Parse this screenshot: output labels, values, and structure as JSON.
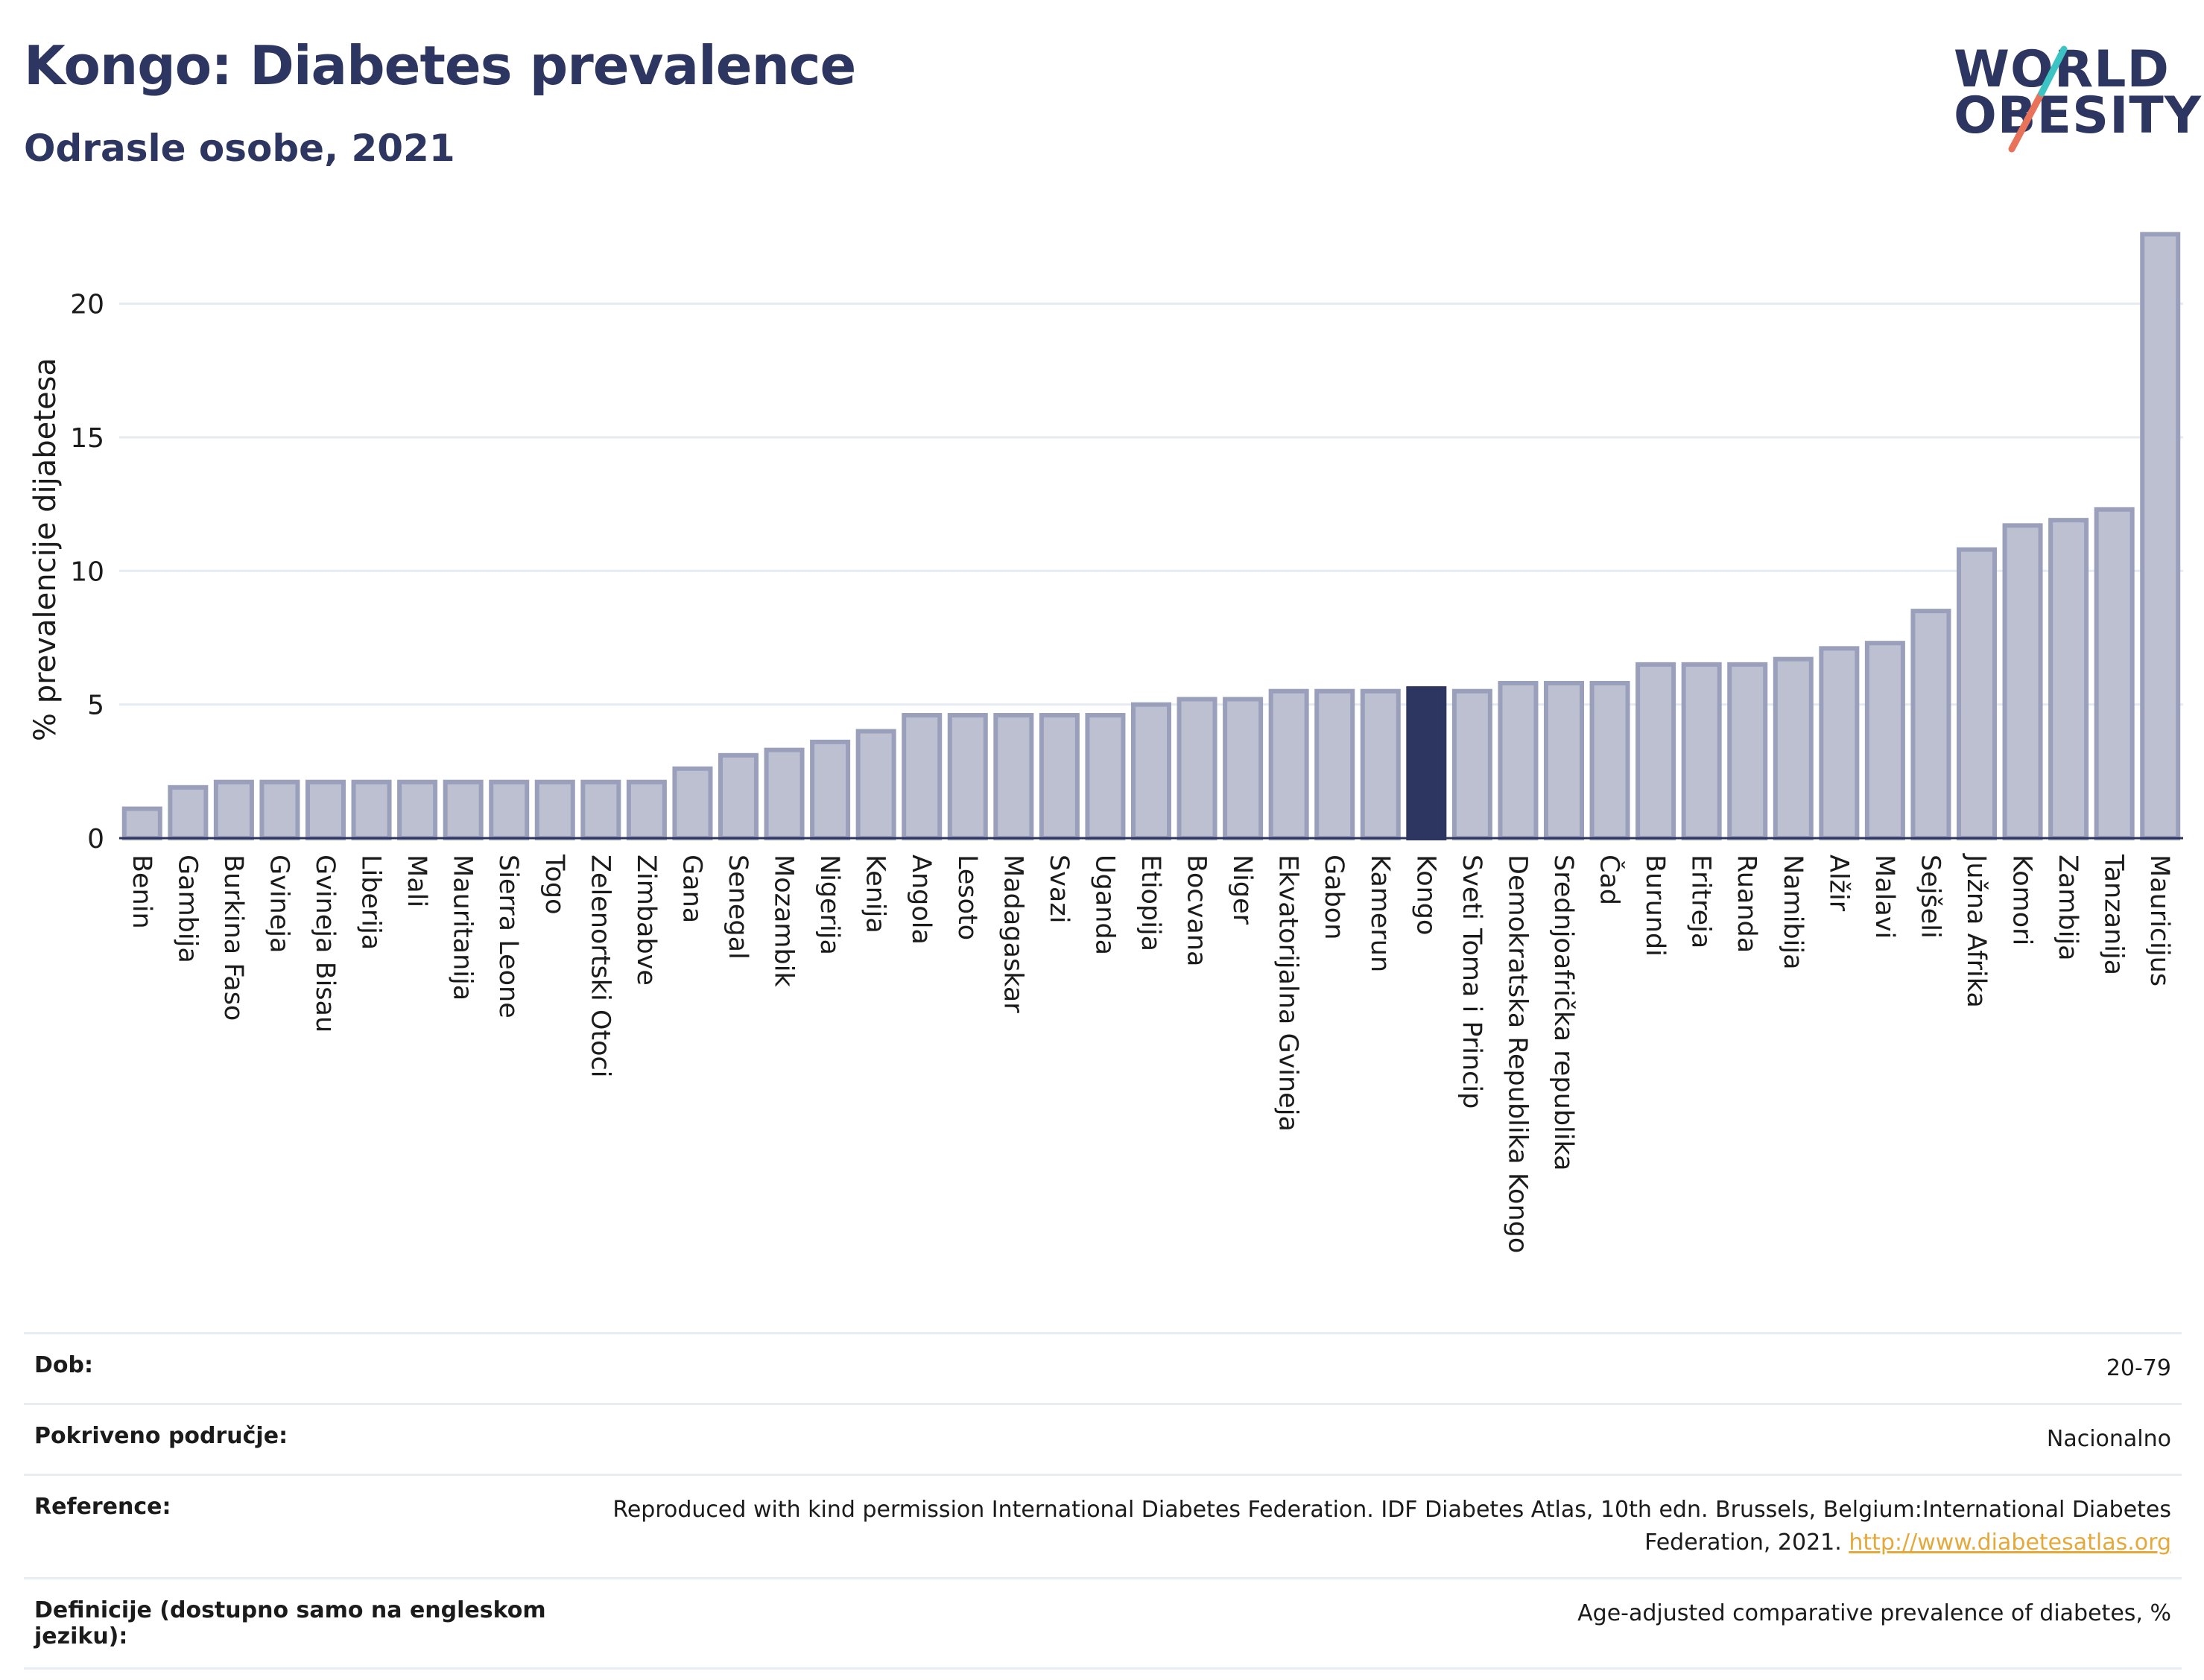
{
  "header": {
    "title": "Kongo: Diabetes prevalence",
    "subtitle": "Odrasle osobe, 2021"
  },
  "logo": {
    "line1": "WORLD",
    "line2": "OBESITY",
    "colors": {
      "text": "#2d3561",
      "slash_teal": "#3cc3c3",
      "slash_coral": "#e8735a"
    }
  },
  "colors": {
    "bar_default": "#bcc0d0",
    "bar_border": "#9aa0bb",
    "bar_highlight": "#2d3561",
    "gridline": "#e6ebf2",
    "axis_text": "#1b1b1b"
  },
  "chart_data": {
    "type": "bar",
    "title": "Kongo: Diabetes prevalence",
    "subtitle": "Odrasle osobe, 2021",
    "xlabel": "",
    "ylabel": "% prevalencije dijabetesa",
    "ylim": [
      0,
      23
    ],
    "yticks": [
      0,
      5,
      10,
      15,
      20
    ],
    "grid": true,
    "highlight": "Kongo",
    "categories": [
      "Benin",
      "Gambija",
      "Burkina Faso",
      "Gvineja",
      "Gvineja Bisau",
      "Liberija",
      "Mali",
      "Mauritanija",
      "Sierra Leone",
      "Togo",
      "Zelenortski Otoci",
      "Zimbabve",
      "Gana",
      "Senegal",
      "Mozambik",
      "Nigerija",
      "Kenija",
      "Angola",
      "Lesoto",
      "Madagaskar",
      "Svazi",
      "Uganda",
      "Etiopija",
      "Bocvana",
      "Niger",
      "Ekvatorijalna Gvineja",
      "Gabon",
      "Kamerun",
      "Kongo",
      "Sveti Toma i Princip",
      "Demokratska Republika Kongo",
      "Srednjoafrička republika",
      "Čad",
      "Burundi",
      "Eritreja",
      "Ruanda",
      "Namibija",
      "Alžir",
      "Malavi",
      "Sejšeli",
      "Južna Afrika",
      "Komori",
      "Zambija",
      "Tanzanija",
      "Mauricijus"
    ],
    "values": [
      1.1,
      1.9,
      2.1,
      2.1,
      2.1,
      2.1,
      2.1,
      2.1,
      2.1,
      2.1,
      2.1,
      2.1,
      2.6,
      3.1,
      3.3,
      3.6,
      4.0,
      4.6,
      4.6,
      4.6,
      4.6,
      4.6,
      5.0,
      5.2,
      5.2,
      5.5,
      5.5,
      5.5,
      5.6,
      5.5,
      5.8,
      5.8,
      5.8,
      6.5,
      6.5,
      6.5,
      6.7,
      7.1,
      7.3,
      8.5,
      10.8,
      11.7,
      11.9,
      12.3,
      22.6
    ]
  },
  "info": {
    "rows": [
      {
        "label": "Dob:",
        "value": "20-79"
      },
      {
        "label": "Pokriveno područje:",
        "value": "Nacionalno"
      },
      {
        "label": "Reference:",
        "value": "Reproduced with kind permission International Diabetes Federation.  IDF Diabetes Atlas, 10th edn. Brussels, Belgium:International Diabetes Federation, 2021.",
        "link": "http://www.diabetesatlas.org"
      },
      {
        "label": "Definicije (dostupno samo na engleskom jeziku):",
        "value": "Age-adjusted comparative prevalence of diabetes, %"
      }
    ]
  }
}
